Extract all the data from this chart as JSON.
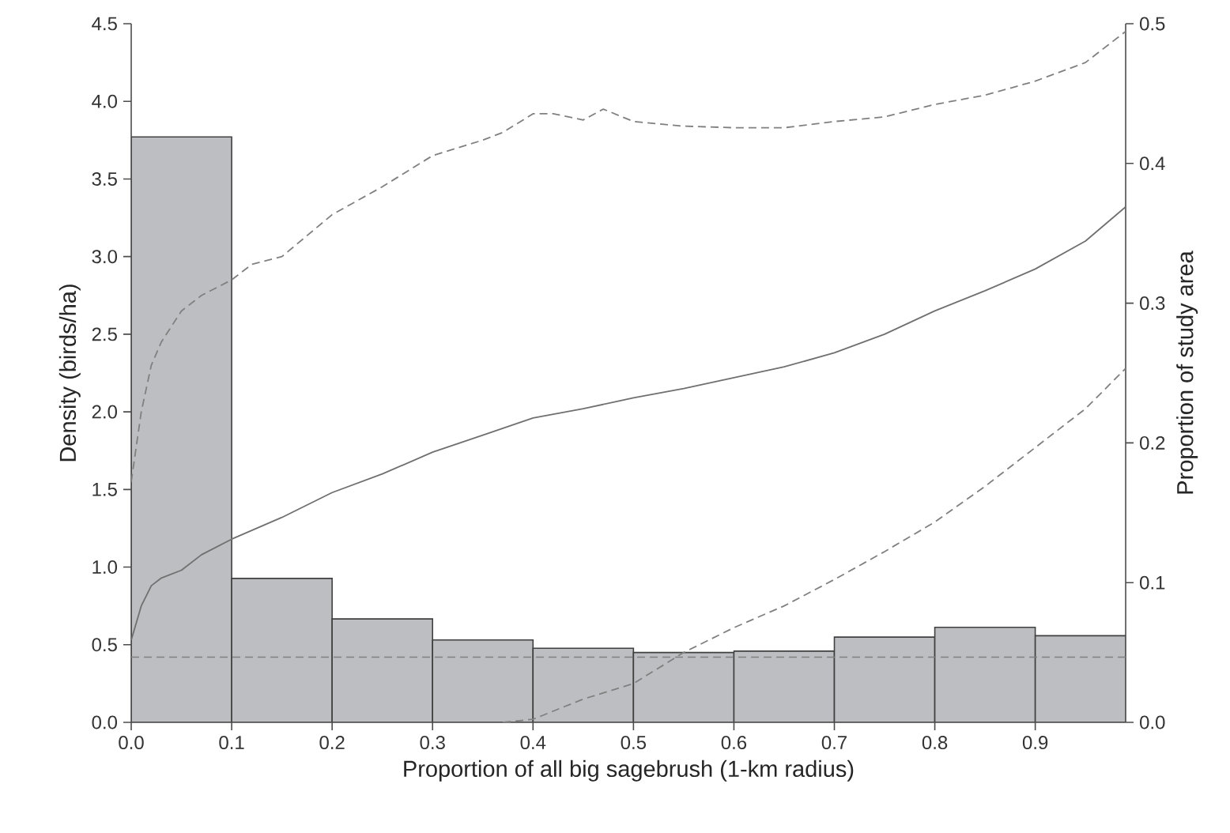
{
  "chart_data": {
    "type": "line",
    "xlabel": "Proportion of all big sagebrush (1-km radius)",
    "ylabel": "Density (birds/ha)",
    "y2label": "Proportion of study area",
    "xlim": [
      0,
      0.99
    ],
    "ylim": [
      0,
      4.5
    ],
    "y2lim": [
      0,
      0.5
    ],
    "xticks": [
      {
        "value": 0,
        "label": "0.0"
      },
      0.1,
      0.2,
      0.3,
      0.4,
      0.5,
      0.6,
      0.7,
      0.8,
      0.9
    ],
    "yticks": [
      {
        "value": 0,
        "label": "0.0"
      },
      0.5,
      {
        "value": 1,
        "label": "1.0"
      },
      1.5,
      {
        "value": 2,
        "label": "2.0"
      },
      2.5,
      {
        "value": 3,
        "label": "3.0"
      },
      3.5,
      {
        "value": 4,
        "label": "4.0"
      },
      4.5
    ],
    "y2ticks": [
      {
        "value": 0,
        "label": "0.0"
      },
      0.1,
      0.2,
      0.3,
      0.4,
      0.5
    ],
    "ref_lines": [
      {
        "axis": "y",
        "value": 0.42,
        "color": "#808080",
        "line_style": "dashed"
      }
    ],
    "series": [
      {
        "type": "histogram",
        "axis": "y2",
        "color": "#bdbec2",
        "bins": [
          0,
          0.1,
          0.2,
          0.3,
          0.4,
          0.5,
          0.6,
          0.7,
          0.8,
          0.9,
          0.99
        ],
        "values": [
          0.419,
          0.103,
          0.074,
          0.059,
          0.053,
          0.05,
          0.051,
          0.061,
          0.068,
          0.062
        ]
      },
      {
        "color": "#707070",
        "line_style": "solid",
        "x": [
          0,
          0.01,
          0.02,
          0.03,
          0.05,
          0.07,
          0.1,
          0.15,
          0.2,
          0.25,
          0.3,
          0.35,
          0.4,
          0.45,
          0.5,
          0.55,
          0.6,
          0.65,
          0.7,
          0.75,
          0.8,
          0.85,
          0.9,
          0.95,
          0.99
        ],
        "values": [
          0.53,
          0.75,
          0.88,
          0.93,
          0.98,
          1.08,
          1.18,
          1.32,
          1.48,
          1.6,
          1.74,
          1.85,
          1.96,
          2.02,
          2.09,
          2.15,
          2.22,
          2.29,
          2.38,
          2.5,
          2.65,
          2.78,
          2.92,
          3.1,
          3.32
        ]
      },
      {
        "color": "#808080",
        "line_style": "dashed",
        "x": [
          0,
          0.01,
          0.02,
          0.03,
          0.05,
          0.07,
          0.1,
          0.12,
          0.15,
          0.2,
          0.25,
          0.3,
          0.35,
          0.37,
          0.4,
          0.42,
          0.45,
          0.47,
          0.5,
          0.55,
          0.6,
          0.65,
          0.7,
          0.75,
          0.8,
          0.85,
          0.9,
          0.95,
          0.99
        ],
        "values": [
          1.55,
          2.0,
          2.3,
          2.45,
          2.65,
          2.75,
          2.85,
          2.95,
          3.0,
          3.27,
          3.45,
          3.65,
          3.75,
          3.8,
          3.92,
          3.92,
          3.88,
          3.95,
          3.87,
          3.84,
          3.83,
          3.83,
          3.87,
          3.9,
          3.98,
          4.04,
          4.13,
          4.25,
          4.45
        ]
      },
      {
        "color": "#808080",
        "line_style": "dashed",
        "x": [
          0.37,
          0.4,
          0.45,
          0.5,
          0.55,
          0.6,
          0.65,
          0.7,
          0.75,
          0.8,
          0.85,
          0.9,
          0.95,
          0.99
        ],
        "values": [
          0,
          0.02,
          0.15,
          0.25,
          0.45,
          0.61,
          0.75,
          0.92,
          1.1,
          1.29,
          1.52,
          1.77,
          2.02,
          2.28
        ]
      }
    ]
  }
}
